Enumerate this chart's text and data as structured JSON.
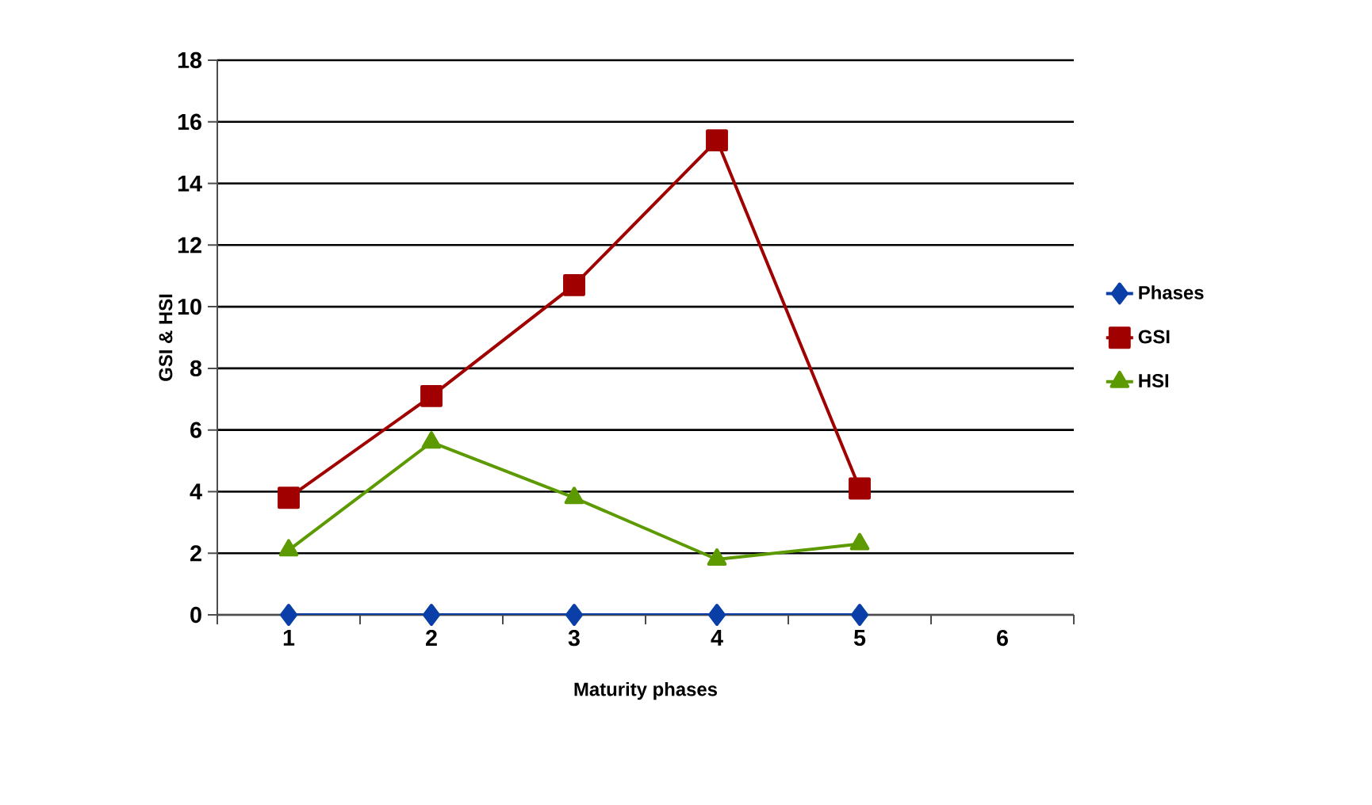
{
  "chart_data": {
    "type": "line",
    "xlabel": "Maturity phases",
    "ylabel": "GSI & HSI",
    "categories": [
      "1",
      "2",
      "3",
      "4",
      "5",
      "6"
    ],
    "series": [
      {
        "name": "Phases",
        "color": "#0b3fa8",
        "marker": "diamond",
        "values": [
          0,
          0,
          0,
          0,
          0,
          null
        ]
      },
      {
        "name": "GSI",
        "color": "#a00000",
        "marker": "square",
        "values": [
          3.8,
          7.1,
          10.7,
          15.4,
          4.1,
          null
        ]
      },
      {
        "name": "HSI",
        "color": "#5c9a00",
        "marker": "triangle",
        "values": [
          2.1,
          5.6,
          3.8,
          1.8,
          2.3,
          null
        ]
      }
    ],
    "ylim": [
      0,
      18
    ],
    "yticks": [
      0,
      2,
      4,
      6,
      8,
      10,
      12,
      14,
      16,
      18
    ],
    "grid": "y",
    "legend": "right",
    "line_style": "solid"
  }
}
